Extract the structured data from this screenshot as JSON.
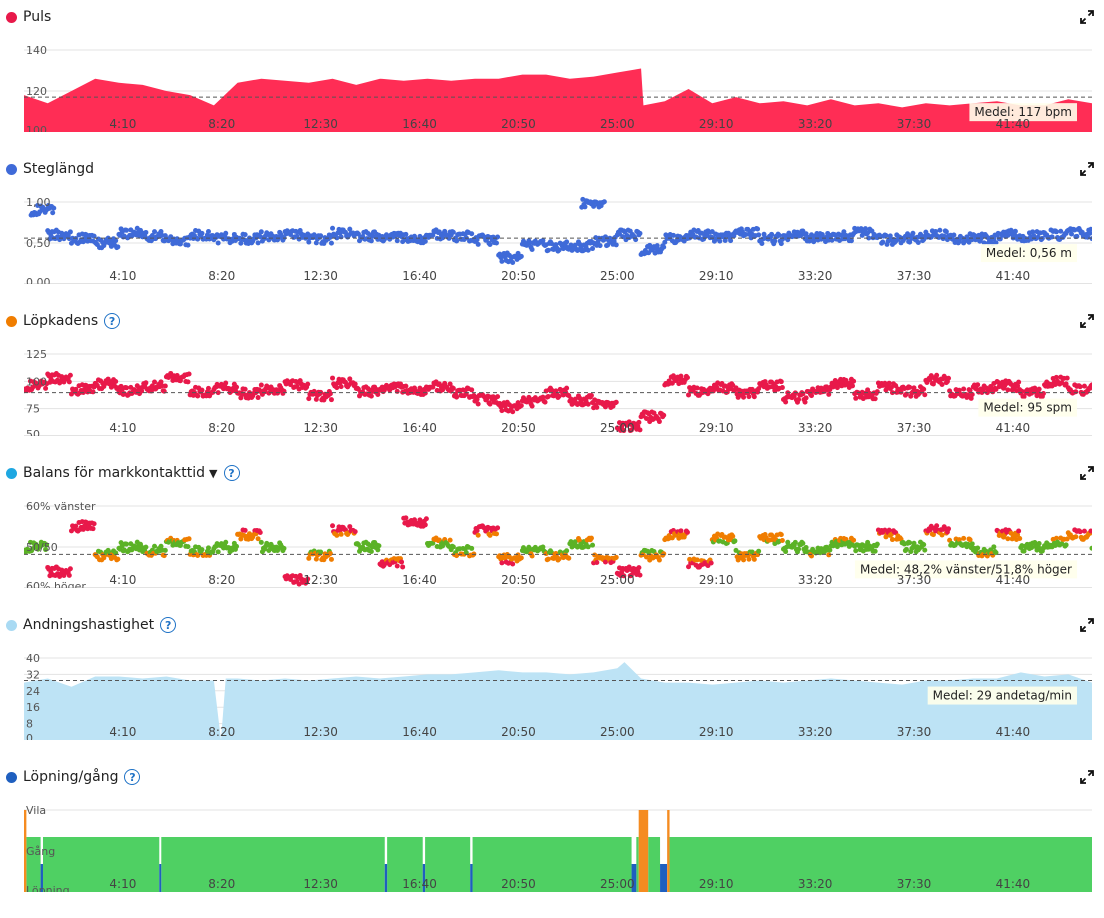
{
  "x_ticks": [
    "4:10",
    "8:20",
    "12:30",
    "16:40",
    "20:50",
    "25:00",
    "29:10",
    "33:20",
    "37:30",
    "41:40"
  ],
  "panels": [
    {
      "id": "puls",
      "title": "Puls",
      "dot_color": "#e8194a",
      "help": false,
      "dropdown": false,
      "y_labels": [
        "140",
        "120",
        "100"
      ],
      "avg_label": "Medel: 117 bpm",
      "chart_data": {
        "type": "area",
        "ylim": [
          100,
          140
        ],
        "color": "#ff2d55",
        "average": 117,
        "x_minutes": [
          0,
          1,
          2,
          3,
          4,
          5,
          6,
          7,
          8,
          9,
          10,
          11,
          12,
          13,
          14,
          15,
          16,
          17,
          18,
          19,
          20,
          21,
          22,
          23,
          24,
          25,
          26,
          26.1,
          27,
          28,
          29,
          30,
          31,
          32,
          33,
          34,
          35,
          36,
          37,
          38,
          39,
          40,
          41,
          42,
          43,
          44,
          45
        ],
        "values": [
          118,
          114,
          120,
          126,
          124,
          123,
          120,
          118,
          113,
          124,
          126,
          125,
          124,
          126,
          123,
          126,
          125,
          126,
          125,
          126,
          126,
          128,
          128,
          126,
          127,
          129,
          131,
          113,
          115,
          121,
          114,
          117,
          114,
          115,
          113,
          116,
          113,
          114,
          112,
          114,
          113,
          114,
          115,
          113,
          113,
          116,
          114
        ]
      }
    },
    {
      "id": "steglangd",
      "title": "Steglängd",
      "dot_color": "#3f6ad8",
      "help": false,
      "dropdown": false,
      "y_labels": [
        "1,00",
        "0,50",
        "0,00"
      ],
      "avg_label": "Medel: 0,56 m",
      "chart_data": {
        "type": "scatter",
        "ylim": [
          0,
          1.0
        ],
        "color": "#3f6ad8",
        "average": 0.56,
        "x_minutes": [
          0.3,
          1,
          2,
          3,
          4,
          5,
          6,
          7,
          8,
          9,
          10,
          11,
          12,
          13,
          14,
          15,
          16,
          17,
          18,
          19,
          20,
          21,
          22,
          23,
          23.5,
          24,
          25,
          26,
          27,
          28,
          29,
          30,
          31,
          32,
          33,
          34,
          35,
          36,
          37,
          38,
          39,
          40,
          41,
          42,
          43,
          44,
          45
        ],
        "values": [
          0.9,
          0.6,
          0.55,
          0.5,
          0.62,
          0.58,
          0.52,
          0.6,
          0.56,
          0.55,
          0.58,
          0.6,
          0.55,
          0.62,
          0.58,
          0.56,
          0.55,
          0.6,
          0.58,
          0.54,
          0.32,
          0.48,
          0.46,
          0.46,
          0.98,
          0.52,
          0.6,
          0.42,
          0.55,
          0.6,
          0.58,
          0.62,
          0.55,
          0.6,
          0.56,
          0.58,
          0.62,
          0.54,
          0.56,
          0.6,
          0.56,
          0.55,
          0.6,
          0.58,
          0.6,
          0.62,
          0.58
        ]
      }
    },
    {
      "id": "lopkadens",
      "title": "Löpkadens",
      "dot_color": "#f07d00",
      "help": true,
      "dropdown": false,
      "y_labels": [
        "125",
        "100",
        "75",
        "50"
      ],
      "avg_label": "Medel: 95 spm",
      "chart_data": {
        "type": "scatter",
        "ylim": [
          50,
          135
        ],
        "color": "#e8194a",
        "average": 95,
        "x_minutes": [
          0,
          1,
          2,
          3,
          4,
          5,
          6,
          7,
          8,
          9,
          10,
          11,
          12,
          13,
          14,
          15,
          16,
          17,
          18,
          19,
          20,
          21,
          22,
          23,
          24,
          25,
          26,
          27,
          28,
          29,
          30,
          31,
          32,
          33,
          34,
          35,
          36,
          37,
          38,
          39,
          40,
          41,
          42,
          43,
          44,
          45
        ],
        "values": [
          102,
          110,
          98,
          104,
          97,
          101,
          110,
          96,
          100,
          94,
          98,
          103,
          92,
          105,
          96,
          99,
          97,
          101,
          95,
          88,
          80,
          86,
          95,
          87,
          83,
          60,
          70,
          108,
          96,
          100,
          95,
          102,
          90,
          97,
          104,
          93,
          100,
          96,
          108,
          94,
          100,
          102,
          95,
          106,
          98,
          100
        ]
      }
    },
    {
      "id": "balans",
      "title": "Balans för markkontakttid",
      "dot_color": "#1ea7e1",
      "help": true,
      "dropdown": true,
      "y_labels": [
        "60% vänster",
        "50/50",
        "60% höger"
      ],
      "avg_label": "Medel: 48,2% vänster/51,8% höger",
      "chart_data": {
        "type": "scatter",
        "ylim": [
          40,
          60
        ],
        "colors": {
          "over": "#e8194a",
          "mid": "#f07d00",
          "balanced": "#5bb226"
        },
        "average": 48.2,
        "x_minutes": [
          0,
          1,
          2,
          3,
          4,
          5,
          6,
          7,
          8,
          9,
          10,
          11,
          12,
          13,
          14,
          15,
          16,
          17,
          18,
          19,
          20,
          21,
          22,
          23,
          24,
          25,
          26,
          27,
          28,
          29,
          30,
          31,
          32,
          33,
          34,
          35,
          36,
          37,
          38,
          39,
          40,
          41,
          42,
          43,
          44,
          45
        ],
        "values": [
          50,
          44,
          55,
          48,
          50,
          49,
          51,
          49,
          50,
          53,
          50,
          42,
          48,
          54,
          50,
          46,
          56,
          51,
          49,
          54,
          47,
          49,
          48,
          51,
          47,
          44,
          48,
          53,
          46,
          52,
          48,
          52,
          50,
          49,
          51,
          50,
          53,
          50,
          54,
          51,
          49,
          53,
          50,
          51,
          53,
          49
        ]
      }
    },
    {
      "id": "andning",
      "title": "Andningshastighet",
      "dot_color": "#a9daf3",
      "help": true,
      "dropdown": false,
      "y_labels": [
        "40",
        "32",
        "24",
        "16",
        "8",
        "0"
      ],
      "avg_label": "Medel: 29 andetag/min",
      "chart_data": {
        "type": "area",
        "ylim": [
          0,
          40
        ],
        "color": "#bde3f5",
        "average": 29,
        "x_minutes": [
          0,
          1,
          2,
          3,
          4,
          5,
          6,
          7,
          8,
          8.3,
          8.5,
          9,
          10,
          11,
          12,
          13,
          14,
          15,
          16,
          17,
          18,
          19,
          20,
          21,
          22,
          23,
          24,
          25,
          25.3,
          26,
          27,
          28,
          29,
          30,
          31,
          32,
          33,
          34,
          35,
          36,
          37,
          38,
          39,
          40,
          41,
          42,
          43,
          44,
          45
        ],
        "values": [
          28,
          30,
          26,
          31,
          31,
          30,
          31,
          29,
          29,
          0,
          30,
          30,
          29,
          30,
          29,
          30,
          31,
          30,
          31,
          32,
          32,
          33,
          34,
          33,
          33,
          32,
          33,
          35,
          38,
          30,
          28,
          28,
          27,
          28,
          29,
          28,
          29,
          30,
          29,
          28,
          27,
          29,
          29,
          30,
          30,
          33,
          31,
          32,
          28
        ]
      }
    },
    {
      "id": "lopning",
      "title": "Löpning/gång",
      "dot_color": "#1f5fbf",
      "help": true,
      "dropdown": false,
      "y_labels": [
        "Vila",
        "Gång",
        "Löpning"
      ],
      "avg_label": "",
      "chart_data": {
        "type": "bar",
        "categories": [
          "Löpning",
          "Gång",
          "Vila"
        ],
        "colors": {
          "Löpning": "#4fd063",
          "Gång": "#1f5fbf",
          "Vila": "#f58b20"
        },
        "segments": [
          {
            "x_start": 0,
            "x_end": 0.1,
            "state": "Vila"
          },
          {
            "x_start": 0.7,
            "x_end": 0.8,
            "state": "Gång"
          },
          {
            "x_start": 5.7,
            "x_end": 5.75,
            "state": "Gång"
          },
          {
            "x_start": 15.2,
            "x_end": 15.3,
            "state": "Gång"
          },
          {
            "x_start": 16.8,
            "x_end": 16.9,
            "state": "Gång"
          },
          {
            "x_start": 18.8,
            "x_end": 18.9,
            "state": "Gång"
          },
          {
            "x_start": 25.6,
            "x_end": 25.8,
            "state": "Gång"
          },
          {
            "x_start": 25.9,
            "x_end": 26.3,
            "state": "Vila"
          },
          {
            "x_start": 26.8,
            "x_end": 27.1,
            "state": "Gång"
          },
          {
            "x_start": 27.1,
            "x_end": 27.2,
            "state": "Vila"
          }
        ]
      }
    }
  ]
}
